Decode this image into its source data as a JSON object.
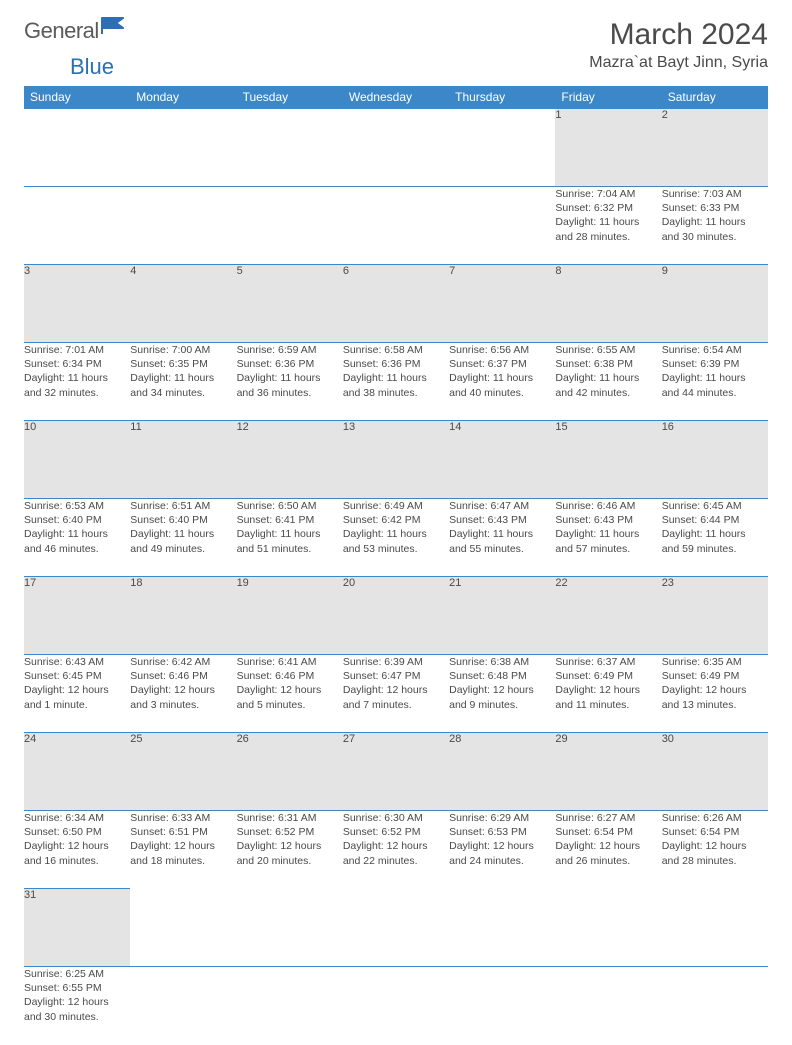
{
  "brand": {
    "part1": "General",
    "part2": "Blue"
  },
  "title": "March 2024",
  "location": "Mazra`at Bayt Jinn, Syria",
  "colors": {
    "header_bg": "#3b87c8",
    "header_text": "#ffffff",
    "daynum_bg": "#e4e4e4",
    "border": "#3b87c8",
    "text": "#4a4a4a",
    "brand_blue": "#2c6fb5"
  },
  "weekdays": [
    "Sunday",
    "Monday",
    "Tuesday",
    "Wednesday",
    "Thursday",
    "Friday",
    "Saturday"
  ],
  "weeks": [
    [
      null,
      null,
      null,
      null,
      null,
      {
        "n": "1",
        "sr": "Sunrise: 7:04 AM",
        "ss": "Sunset: 6:32 PM",
        "d1": "Daylight: 11 hours",
        "d2": "and 28 minutes."
      },
      {
        "n": "2",
        "sr": "Sunrise: 7:03 AM",
        "ss": "Sunset: 6:33 PM",
        "d1": "Daylight: 11 hours",
        "d2": "and 30 minutes."
      }
    ],
    [
      {
        "n": "3",
        "sr": "Sunrise: 7:01 AM",
        "ss": "Sunset: 6:34 PM",
        "d1": "Daylight: 11 hours",
        "d2": "and 32 minutes."
      },
      {
        "n": "4",
        "sr": "Sunrise: 7:00 AM",
        "ss": "Sunset: 6:35 PM",
        "d1": "Daylight: 11 hours",
        "d2": "and 34 minutes."
      },
      {
        "n": "5",
        "sr": "Sunrise: 6:59 AM",
        "ss": "Sunset: 6:36 PM",
        "d1": "Daylight: 11 hours",
        "d2": "and 36 minutes."
      },
      {
        "n": "6",
        "sr": "Sunrise: 6:58 AM",
        "ss": "Sunset: 6:36 PM",
        "d1": "Daylight: 11 hours",
        "d2": "and 38 minutes."
      },
      {
        "n": "7",
        "sr": "Sunrise: 6:56 AM",
        "ss": "Sunset: 6:37 PM",
        "d1": "Daylight: 11 hours",
        "d2": "and 40 minutes."
      },
      {
        "n": "8",
        "sr": "Sunrise: 6:55 AM",
        "ss": "Sunset: 6:38 PM",
        "d1": "Daylight: 11 hours",
        "d2": "and 42 minutes."
      },
      {
        "n": "9",
        "sr": "Sunrise: 6:54 AM",
        "ss": "Sunset: 6:39 PM",
        "d1": "Daylight: 11 hours",
        "d2": "and 44 minutes."
      }
    ],
    [
      {
        "n": "10",
        "sr": "Sunrise: 6:53 AM",
        "ss": "Sunset: 6:40 PM",
        "d1": "Daylight: 11 hours",
        "d2": "and 46 minutes."
      },
      {
        "n": "11",
        "sr": "Sunrise: 6:51 AM",
        "ss": "Sunset: 6:40 PM",
        "d1": "Daylight: 11 hours",
        "d2": "and 49 minutes."
      },
      {
        "n": "12",
        "sr": "Sunrise: 6:50 AM",
        "ss": "Sunset: 6:41 PM",
        "d1": "Daylight: 11 hours",
        "d2": "and 51 minutes."
      },
      {
        "n": "13",
        "sr": "Sunrise: 6:49 AM",
        "ss": "Sunset: 6:42 PM",
        "d1": "Daylight: 11 hours",
        "d2": "and 53 minutes."
      },
      {
        "n": "14",
        "sr": "Sunrise: 6:47 AM",
        "ss": "Sunset: 6:43 PM",
        "d1": "Daylight: 11 hours",
        "d2": "and 55 minutes."
      },
      {
        "n": "15",
        "sr": "Sunrise: 6:46 AM",
        "ss": "Sunset: 6:43 PM",
        "d1": "Daylight: 11 hours",
        "d2": "and 57 minutes."
      },
      {
        "n": "16",
        "sr": "Sunrise: 6:45 AM",
        "ss": "Sunset: 6:44 PM",
        "d1": "Daylight: 11 hours",
        "d2": "and 59 minutes."
      }
    ],
    [
      {
        "n": "17",
        "sr": "Sunrise: 6:43 AM",
        "ss": "Sunset: 6:45 PM",
        "d1": "Daylight: 12 hours",
        "d2": "and 1 minute."
      },
      {
        "n": "18",
        "sr": "Sunrise: 6:42 AM",
        "ss": "Sunset: 6:46 PM",
        "d1": "Daylight: 12 hours",
        "d2": "and 3 minutes."
      },
      {
        "n": "19",
        "sr": "Sunrise: 6:41 AM",
        "ss": "Sunset: 6:46 PM",
        "d1": "Daylight: 12 hours",
        "d2": "and 5 minutes."
      },
      {
        "n": "20",
        "sr": "Sunrise: 6:39 AM",
        "ss": "Sunset: 6:47 PM",
        "d1": "Daylight: 12 hours",
        "d2": "and 7 minutes."
      },
      {
        "n": "21",
        "sr": "Sunrise: 6:38 AM",
        "ss": "Sunset: 6:48 PM",
        "d1": "Daylight: 12 hours",
        "d2": "and 9 minutes."
      },
      {
        "n": "22",
        "sr": "Sunrise: 6:37 AM",
        "ss": "Sunset: 6:49 PM",
        "d1": "Daylight: 12 hours",
        "d2": "and 11 minutes."
      },
      {
        "n": "23",
        "sr": "Sunrise: 6:35 AM",
        "ss": "Sunset: 6:49 PM",
        "d1": "Daylight: 12 hours",
        "d2": "and 13 minutes."
      }
    ],
    [
      {
        "n": "24",
        "sr": "Sunrise: 6:34 AM",
        "ss": "Sunset: 6:50 PM",
        "d1": "Daylight: 12 hours",
        "d2": "and 16 minutes."
      },
      {
        "n": "25",
        "sr": "Sunrise: 6:33 AM",
        "ss": "Sunset: 6:51 PM",
        "d1": "Daylight: 12 hours",
        "d2": "and 18 minutes."
      },
      {
        "n": "26",
        "sr": "Sunrise: 6:31 AM",
        "ss": "Sunset: 6:52 PM",
        "d1": "Daylight: 12 hours",
        "d2": "and 20 minutes."
      },
      {
        "n": "27",
        "sr": "Sunrise: 6:30 AM",
        "ss": "Sunset: 6:52 PM",
        "d1": "Daylight: 12 hours",
        "d2": "and 22 minutes."
      },
      {
        "n": "28",
        "sr": "Sunrise: 6:29 AM",
        "ss": "Sunset: 6:53 PM",
        "d1": "Daylight: 12 hours",
        "d2": "and 24 minutes."
      },
      {
        "n": "29",
        "sr": "Sunrise: 6:27 AM",
        "ss": "Sunset: 6:54 PM",
        "d1": "Daylight: 12 hours",
        "d2": "and 26 minutes."
      },
      {
        "n": "30",
        "sr": "Sunrise: 6:26 AM",
        "ss": "Sunset: 6:54 PM",
        "d1": "Daylight: 12 hours",
        "d2": "and 28 minutes."
      }
    ],
    [
      {
        "n": "31",
        "sr": "Sunrise: 6:25 AM",
        "ss": "Sunset: 6:55 PM",
        "d1": "Daylight: 12 hours",
        "d2": "and 30 minutes."
      },
      null,
      null,
      null,
      null,
      null,
      null
    ]
  ]
}
